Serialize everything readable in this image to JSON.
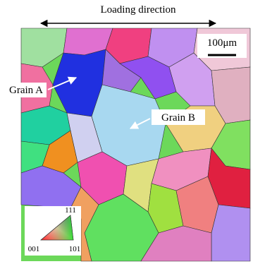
{
  "header": {
    "title": "Loading direction"
  },
  "scale_bar": {
    "label": "100μm"
  },
  "annotations": [
    {
      "label": "Grain A"
    },
    {
      "label": "Grain B"
    }
  ],
  "legend": {
    "top": "111",
    "left": "001",
    "right": "101"
  }
}
